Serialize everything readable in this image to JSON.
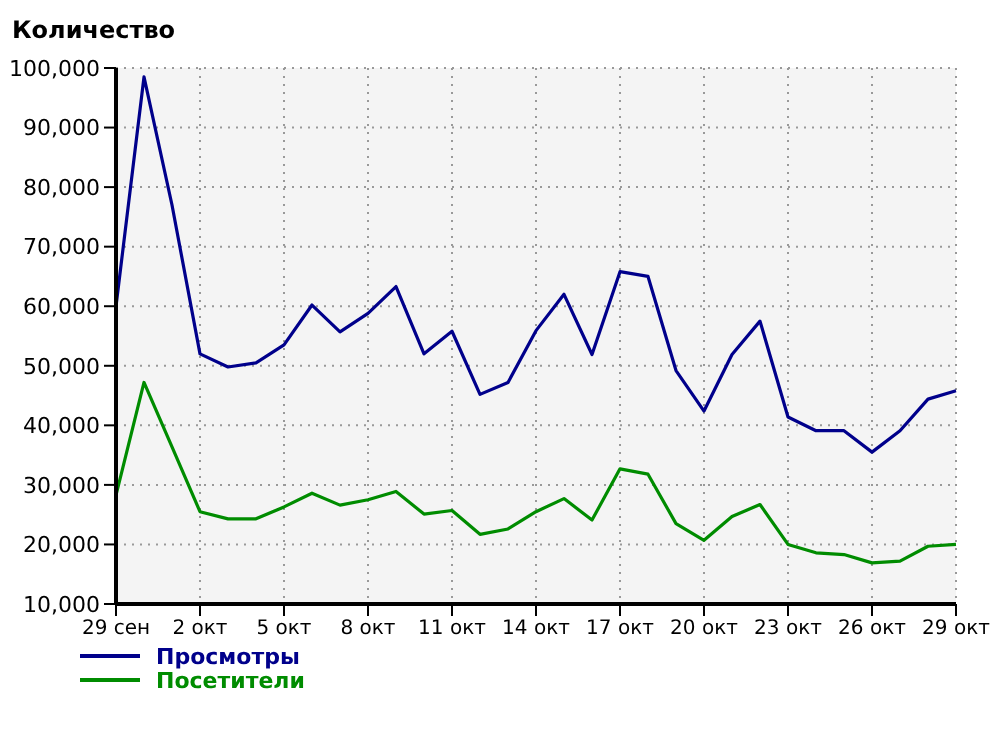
{
  "chart_data": {
    "type": "line",
    "ylabel": "Количество",
    "categories": [
      "29 сен",
      null,
      null,
      "2 окт",
      null,
      null,
      "5 окт",
      null,
      null,
      "8 окт",
      null,
      null,
      "11 окт",
      null,
      null,
      "14 окт",
      null,
      null,
      "17 окт",
      null,
      null,
      "20 окт",
      null,
      null,
      "23 окт",
      null,
      null,
      "26 окт",
      null,
      null,
      "29 окт"
    ],
    "series": [
      {
        "name": "Просмотры",
        "color": "#00008b",
        "values": [
          60000,
          98500,
          77000,
          52000,
          49800,
          50500,
          53500,
          60200,
          55700,
          58800,
          63300,
          52000,
          55800,
          45200,
          47200,
          55900,
          62000,
          51900,
          65800,
          65000,
          49200,
          42400,
          51900,
          57500,
          41400,
          39100,
          39100,
          35500,
          39100,
          44400,
          45800
        ]
      },
      {
        "name": "Посетители",
        "color": "#008c00",
        "values": [
          28300,
          47200,
          36400,
          25500,
          24300,
          24300,
          26300,
          28600,
          26600,
          27500,
          28900,
          25100,
          25700,
          21700,
          22600,
          25500,
          27700,
          24100,
          32700,
          31800,
          23500,
          20700,
          24700,
          26700,
          20000,
          18600,
          18300,
          16900,
          17200,
          19700,
          20000
        ]
      }
    ],
    "ylim": [
      10000,
      100000
    ],
    "yticks": [
      {
        "value": 10000,
        "label": "10,000"
      },
      {
        "value": 20000,
        "label": "20,000"
      },
      {
        "value": 30000,
        "label": "30,000"
      },
      {
        "value": 40000,
        "label": "40,000"
      },
      {
        "value": 50000,
        "label": "50,000"
      },
      {
        "value": 60000,
        "label": "60,000"
      },
      {
        "value": 70000,
        "label": "70,000"
      },
      {
        "value": 80000,
        "label": "80,000"
      },
      {
        "value": 90000,
        "label": "90,000"
      },
      {
        "value": 100000,
        "label": "100,000"
      }
    ],
    "grid": true,
    "legend": "bottom left",
    "marker": "none",
    "line_style": "solid"
  }
}
